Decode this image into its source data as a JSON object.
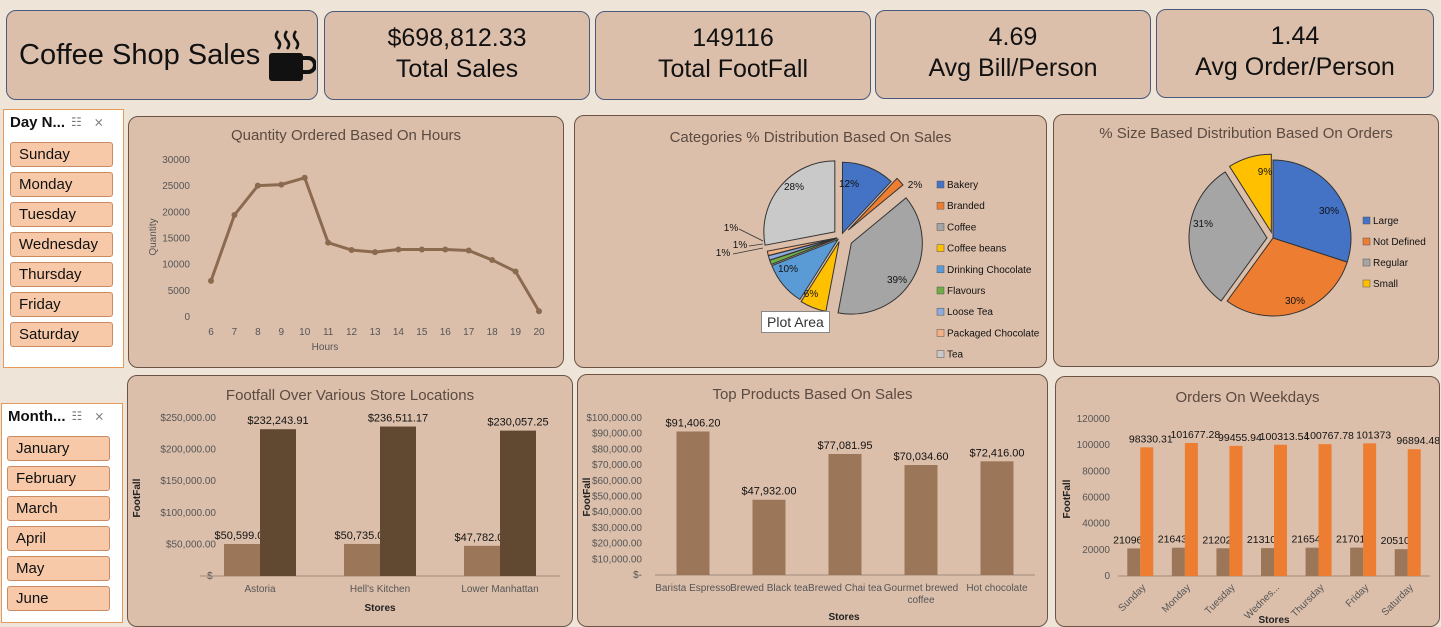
{
  "header": {
    "title": "Coffee Shop Sales",
    "kpis": [
      {
        "value": "$698,812.33",
        "label": "Total Sales"
      },
      {
        "value": "149116",
        "label": "Total FootFall"
      },
      {
        "value": "4.69",
        "label": "Avg Bill/Person"
      },
      {
        "value": "1.44",
        "label": "Avg Order/Person"
      }
    ]
  },
  "slicers": {
    "day": {
      "title": "Day N...",
      "items": [
        "Sunday",
        "Monday",
        "Tuesday",
        "Wednesday",
        "Thursday",
        "Friday",
        "Saturday"
      ]
    },
    "month": {
      "title": "Month...",
      "items": [
        "January",
        "February",
        "March",
        "April",
        "May",
        "June"
      ]
    }
  },
  "tooltip": "Plot Area",
  "chart_data": [
    {
      "id": "hours",
      "type": "line",
      "title": "Quantity Ordered Based On Hours",
      "xlabel": "Hours",
      "ylabel": "Quantity",
      "x": [
        "6",
        "7",
        "8",
        "9",
        "10",
        "11",
        "12",
        "13",
        "14",
        "15",
        "16",
        "17",
        "18",
        "19",
        "20"
      ],
      "values": [
        6900,
        19500,
        25100,
        25300,
        26600,
        14200,
        12800,
        12400,
        12900,
        12900,
        12900,
        12700,
        10900,
        8700,
        1100
      ],
      "ylim": [
        0,
        30000
      ],
      "yticks": [
        "0",
        "5000",
        "10000",
        "15000",
        "20000",
        "25000",
        "30000"
      ],
      "color": "#8c6a50"
    },
    {
      "id": "categories",
      "type": "pie",
      "title": "Categories % Distribution Based On Sales",
      "labels": [
        "Bakery",
        "Branded",
        "Coffee",
        "Coffee beans",
        "Drinking Chocolate",
        "Flavours",
        "Loose Tea",
        "Packaged Chocolate",
        "Tea"
      ],
      "values": [
        12,
        2,
        39,
        6,
        10,
        1,
        1,
        1,
        28
      ],
      "slice_labels": [
        "12%",
        "2%",
        "39%",
        "6%",
        "10%",
        "1%",
        "1%",
        "1%",
        "28%"
      ],
      "colors": [
        "#4472c4",
        "#ed7d31",
        "#a5a5a5",
        "#ffc000",
        "#5b9bd5",
        "#70ad47",
        "#8faadc",
        "#f4b183",
        "#c9c9c9"
      ]
    },
    {
      "id": "sizes",
      "type": "pie",
      "title": "% Size Based Distribution Based On Orders",
      "labels": [
        "Large",
        "Not Defined",
        "Regular",
        "Small"
      ],
      "values": [
        30,
        30,
        31,
        9
      ],
      "slice_labels": [
        "30%",
        "30%",
        "31%",
        "9%"
      ],
      "colors": [
        "#4472c4",
        "#ed7d31",
        "#a5a5a5",
        "#ffc000"
      ]
    },
    {
      "id": "stores",
      "type": "bar",
      "title": "Footfall Over Various Store Locations",
      "xlabel": "Stores",
      "ylabel": "FootFall",
      "categories": [
        "Astoria",
        "Hell's Kitchen",
        "Lower Manhattan"
      ],
      "series": [
        {
          "values": [
            50599,
            50735,
            47782
          ],
          "labels": [
            "$50,599.00",
            "$50,735.00",
            "$47,782.00"
          ],
          "color": "#9c7659"
        },
        {
          "values": [
            232243.91,
            236511.17,
            230057.25
          ],
          "labels": [
            "$232,243.91",
            "$236,511.17",
            "$230,057.25"
          ],
          "color": "#614830"
        }
      ],
      "ylim": [
        0,
        250000
      ],
      "yticks": [
        "$-",
        "$50,000.00",
        "$100,000.00",
        "$150,000.00",
        "$200,000.00",
        "$250,000.00"
      ]
    },
    {
      "id": "products",
      "type": "bar",
      "title": "Top Products Based On Sales",
      "xlabel": "Stores",
      "ylabel": "FootFall",
      "categories": [
        "Barista Espresso",
        "Brewed Black tea",
        "Brewed Chai tea",
        "Gourmet brewed coffee",
        "Hot chocolate"
      ],
      "series": [
        {
          "values": [
            91406.2,
            47932.0,
            77081.95,
            70034.6,
            72416.0
          ],
          "labels": [
            "$91,406.20",
            "$47,932.00",
            "$77,081.95",
            "$70,034.60",
            "$72,416.00"
          ],
          "color": "#9c7659"
        }
      ],
      "ylim": [
        0,
        100000
      ],
      "yticks": [
        "$-",
        "$10,000.00",
        "$20,000.00",
        "$30,000.00",
        "$40,000.00",
        "$50,000.00",
        "$60,000.00",
        "$70,000.00",
        "$80,000.00",
        "$90,000.00",
        "$100,000.00"
      ]
    },
    {
      "id": "weekdays",
      "type": "bar",
      "title": "Orders On Weekdays",
      "xlabel": "Stores",
      "ylabel": "FootFall",
      "categories": [
        "Sunday",
        "Monday",
        "Tuesday",
        "Wednes...",
        "Thursday",
        "Friday",
        "Saturday"
      ],
      "series": [
        {
          "values": [
            21096,
            21643,
            21202,
            21310,
            21654,
            21701,
            20510
          ],
          "labels": [
            "21096",
            "21643",
            "21202",
            "21310",
            "21654",
            "21701",
            "20510"
          ],
          "color": "#9c7659"
        },
        {
          "values": [
            98330.31,
            101677.28,
            99455.94,
            100313.54,
            100767.78,
            101373,
            96894.48
          ],
          "labels": [
            "98330.31",
            "101677.28",
            "99455.94",
            "100313.54",
            "100767.78",
            "101373",
            "96894.48"
          ],
          "color": "#ed7d31"
        }
      ],
      "ylim": [
        0,
        120000
      ],
      "yticks": [
        "0",
        "20000",
        "40000",
        "60000",
        "80000",
        "100000",
        "120000"
      ]
    }
  ]
}
